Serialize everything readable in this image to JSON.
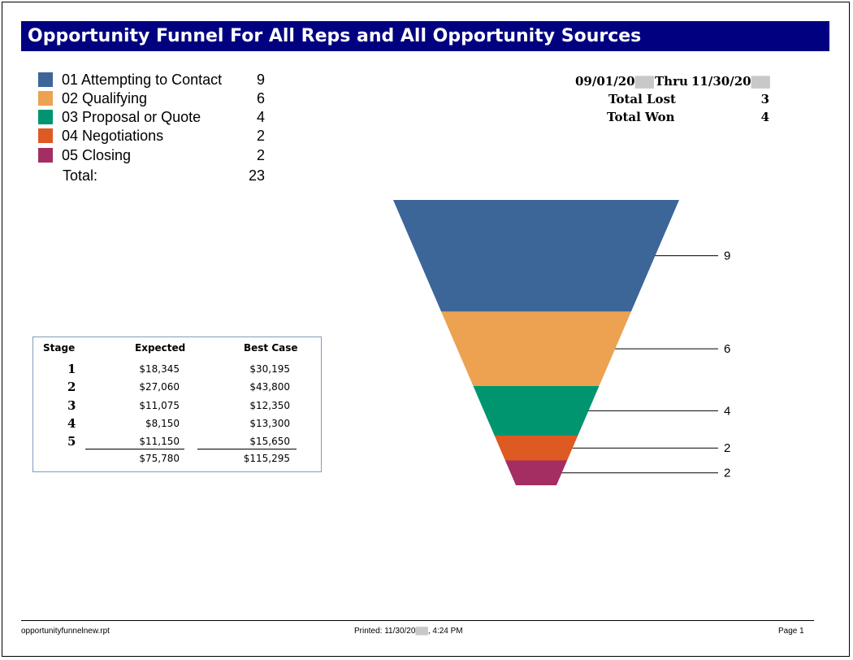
{
  "report": {
    "title": "Opportunity Funnel For All Reps and All Opportunity Sources"
  },
  "legend": {
    "items": [
      {
        "label": "01 Attempting to Contact",
        "count": "9",
        "color": "#3c6698"
      },
      {
        "label": "02 Qualifying",
        "count": "6",
        "color": "#eca251"
      },
      {
        "label": "03 Proposal or Quote",
        "count": "4",
        "color": "#00956f"
      },
      {
        "label": "04 Negotiations",
        "count": "2",
        "color": "#dd5a22"
      },
      {
        "label": "05 Closing",
        "count": "2",
        "color": "#a42d62"
      }
    ],
    "total_label": "Total:",
    "total_value": "23"
  },
  "summary": {
    "start_date": "09/01/20",
    "thru_label": "Thru",
    "end_date": "11/30/20",
    "total_lost_label": "Total Lost",
    "total_lost": "3",
    "total_won_label": "Total Won",
    "total_won": "4"
  },
  "stage_table": {
    "headers": [
      "Stage",
      "Expected",
      "Best Case"
    ],
    "rows": [
      {
        "stage": "1",
        "expected": "$18,345",
        "best_case": "$30,195"
      },
      {
        "stage": "2",
        "expected": "$27,060",
        "best_case": "$43,800"
      },
      {
        "stage": "3",
        "expected": "$11,075",
        "best_case": "$12,350"
      },
      {
        "stage": "4",
        "expected": "$8,150",
        "best_case": "$13,300"
      },
      {
        "stage": "5",
        "expected": "$11,150",
        "best_case": "$15,650"
      }
    ],
    "totals": {
      "expected": "$75,780",
      "best_case": "$115,295"
    }
  },
  "chart_data": {
    "type": "funnel",
    "categories": [
      "01 Attempting to Contact",
      "02 Qualifying",
      "03 Proposal or Quote",
      "04 Negotiations",
      "05 Closing"
    ],
    "values": [
      9,
      6,
      4,
      2,
      2
    ],
    "colors": [
      "#3c6698",
      "#eca251",
      "#00956f",
      "#dd5a22",
      "#a42d62"
    ],
    "data_labels": [
      "9",
      "6",
      "4",
      "2",
      "2"
    ]
  },
  "footer": {
    "file_name": "opportunityfunnelnew.rpt",
    "printed_prefix": "Printed: 11/30/20",
    "printed_time": ",  4:24 PM",
    "page": "Page 1"
  }
}
